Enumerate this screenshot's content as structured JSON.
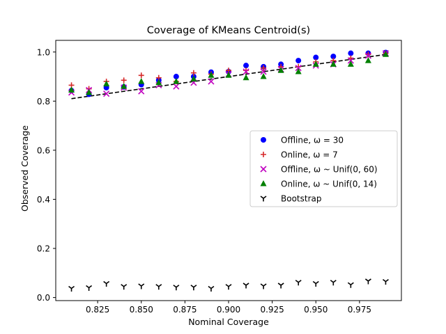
{
  "chart_data": {
    "type": "scatter",
    "title": "Coverage of KMeans Centroid(s)",
    "xlabel": "Nominal Coverage",
    "ylabel": "Observed Coverage",
    "xlim": [
      0.801,
      0.999
    ],
    "ylim": [
      -0.0125,
      1.0475
    ],
    "xticks": [
      "0.825",
      "0.850",
      "0.875",
      "0.900",
      "0.925",
      "0.950",
      "0.975"
    ],
    "yticks": [
      "0.0",
      "0.2",
      "0.4",
      "0.6",
      "0.8",
      "1.0"
    ],
    "grid": false,
    "legend_position": "center-right",
    "x": [
      0.81,
      0.82,
      0.83,
      0.84,
      0.85,
      0.86,
      0.87,
      0.88,
      0.89,
      0.9,
      0.91,
      0.92,
      0.93,
      0.94,
      0.95,
      0.96,
      0.97,
      0.98,
      0.99
    ],
    "reference_line": {
      "style": "dashed",
      "color": "#000000",
      "from": [
        0.81,
        0.81
      ],
      "to": [
        0.99,
        0.99
      ]
    },
    "series": [
      {
        "name": "Offline, ω = 30",
        "marker": "circle",
        "color": "#0000ff",
        "values": [
          0.843,
          0.828,
          0.855,
          0.858,
          0.867,
          0.885,
          0.9,
          0.9,
          0.918,
          0.92,
          0.945,
          0.94,
          0.95,
          0.965,
          0.978,
          0.982,
          0.995,
          0.995,
          0.998
        ]
      },
      {
        "name": "Online, ω = 7",
        "marker": "plus",
        "color": "#d62728",
        "values": [
          0.865,
          0.85,
          0.88,
          0.885,
          0.905,
          0.895,
          0.88,
          0.915,
          0.91,
          0.925,
          0.925,
          0.935,
          0.94,
          0.94,
          0.96,
          0.965,
          0.975,
          0.99,
          0.995
        ]
      },
      {
        "name": "Offline, ω ~ Unif(0, 60)",
        "marker": "x",
        "color": "#bf00bf",
        "values": [
          0.835,
          0.845,
          0.83,
          0.855,
          0.84,
          0.865,
          0.86,
          0.875,
          0.88,
          0.91,
          0.92,
          0.92,
          0.93,
          0.935,
          0.945,
          0.95,
          0.965,
          0.985,
          0.995
        ]
      },
      {
        "name": "Online, ω ~ Unif(0, 14)",
        "marker": "triangle",
        "color": "#008000",
        "values": [
          0.845,
          0.835,
          0.87,
          0.86,
          0.88,
          0.875,
          0.88,
          0.89,
          0.905,
          0.905,
          0.895,
          0.9,
          0.925,
          0.92,
          0.95,
          0.95,
          0.95,
          0.965,
          0.99
        ]
      },
      {
        "name": "Bootstrap",
        "marker": "tri_down",
        "color": "#000000",
        "values": [
          0.037,
          0.04,
          0.057,
          0.045,
          0.047,
          0.045,
          0.042,
          0.042,
          0.037,
          0.045,
          0.05,
          0.047,
          0.05,
          0.062,
          0.057,
          0.062,
          0.052,
          0.067,
          0.065
        ]
      }
    ]
  }
}
